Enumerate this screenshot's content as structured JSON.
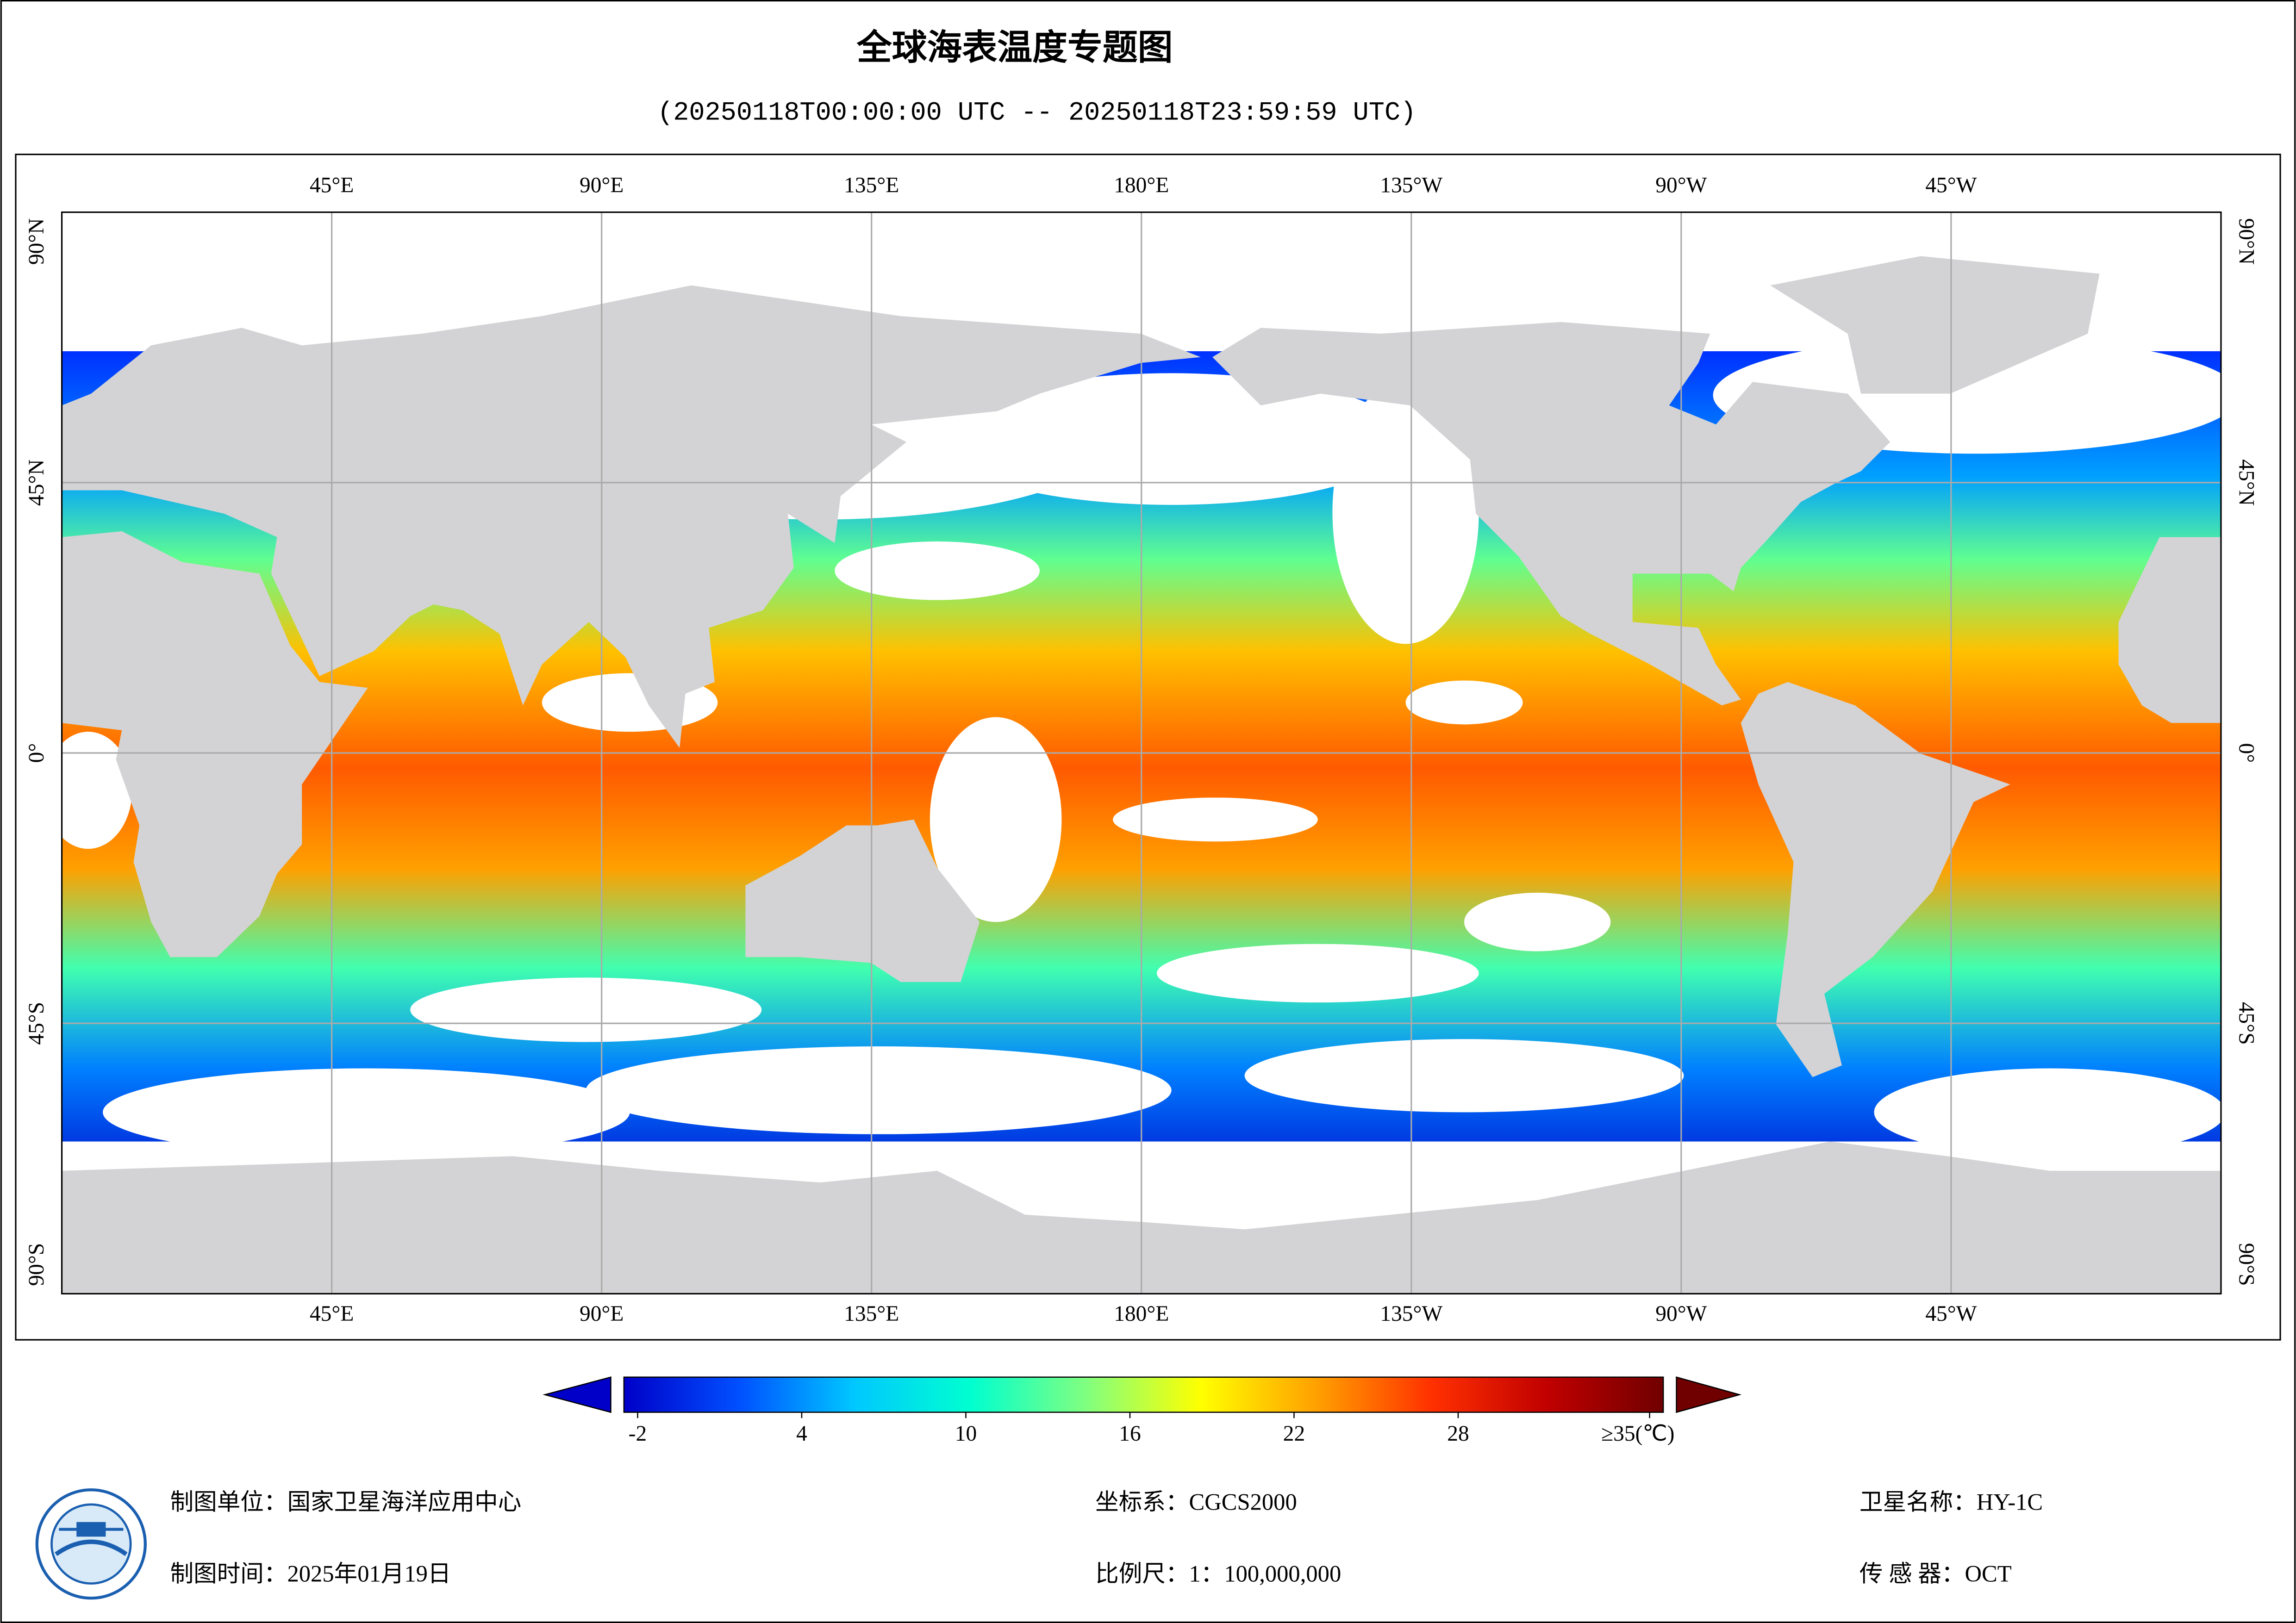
{
  "title": "全球海表温度专题图",
  "subtitle": "(20250118T00:00:00 UTC -- 20250118T23:59:59 UTC)",
  "map": {
    "lon_lim": [
      0,
      360
    ],
    "lat_lim": [
      -90,
      90
    ],
    "grid": true,
    "lon_ticks": [
      {
        "value": 45,
        "label": "45°E"
      },
      {
        "value": 90,
        "label": "90°E"
      },
      {
        "value": 135,
        "label": "135°E"
      },
      {
        "value": 180,
        "label": "180°E"
      },
      {
        "value": 225,
        "label": "135°W"
      },
      {
        "value": 270,
        "label": "90°W"
      },
      {
        "value": 315,
        "label": "45°W"
      }
    ],
    "lat_ticks": [
      {
        "value": 90,
        "label": "90°N"
      },
      {
        "value": 45,
        "label": "45°N"
      },
      {
        "value": 0,
        "label": "0°"
      },
      {
        "value": -45,
        "label": "45°S"
      },
      {
        "value": -90,
        "label": "90°S"
      }
    ]
  },
  "colorbar": {
    "lim": [
      -2.5,
      35.5
    ],
    "ticks": [
      -2,
      4,
      10,
      16,
      22,
      28,
      {
        "value": 35,
        "label": "≥35(℃)"
      }
    ],
    "colors": [
      "#0000c8",
      "#0050ff",
      "#00c8ff",
      "#00ffd0",
      "#80ff80",
      "#ffff00",
      "#ffa000",
      "#ff3000",
      "#c00000",
      "#700000"
    ]
  },
  "footer": {
    "unit": "制图单位：国家卫星海洋应用中心",
    "date": "制图时间：2025年01月19日",
    "crs": "坐标系：CGCS2000",
    "scale": "比例尺：1：100,000,000",
    "satellite": "卫星名称：HY-1C",
    "sensor": "传 感 器：OCT"
  }
}
